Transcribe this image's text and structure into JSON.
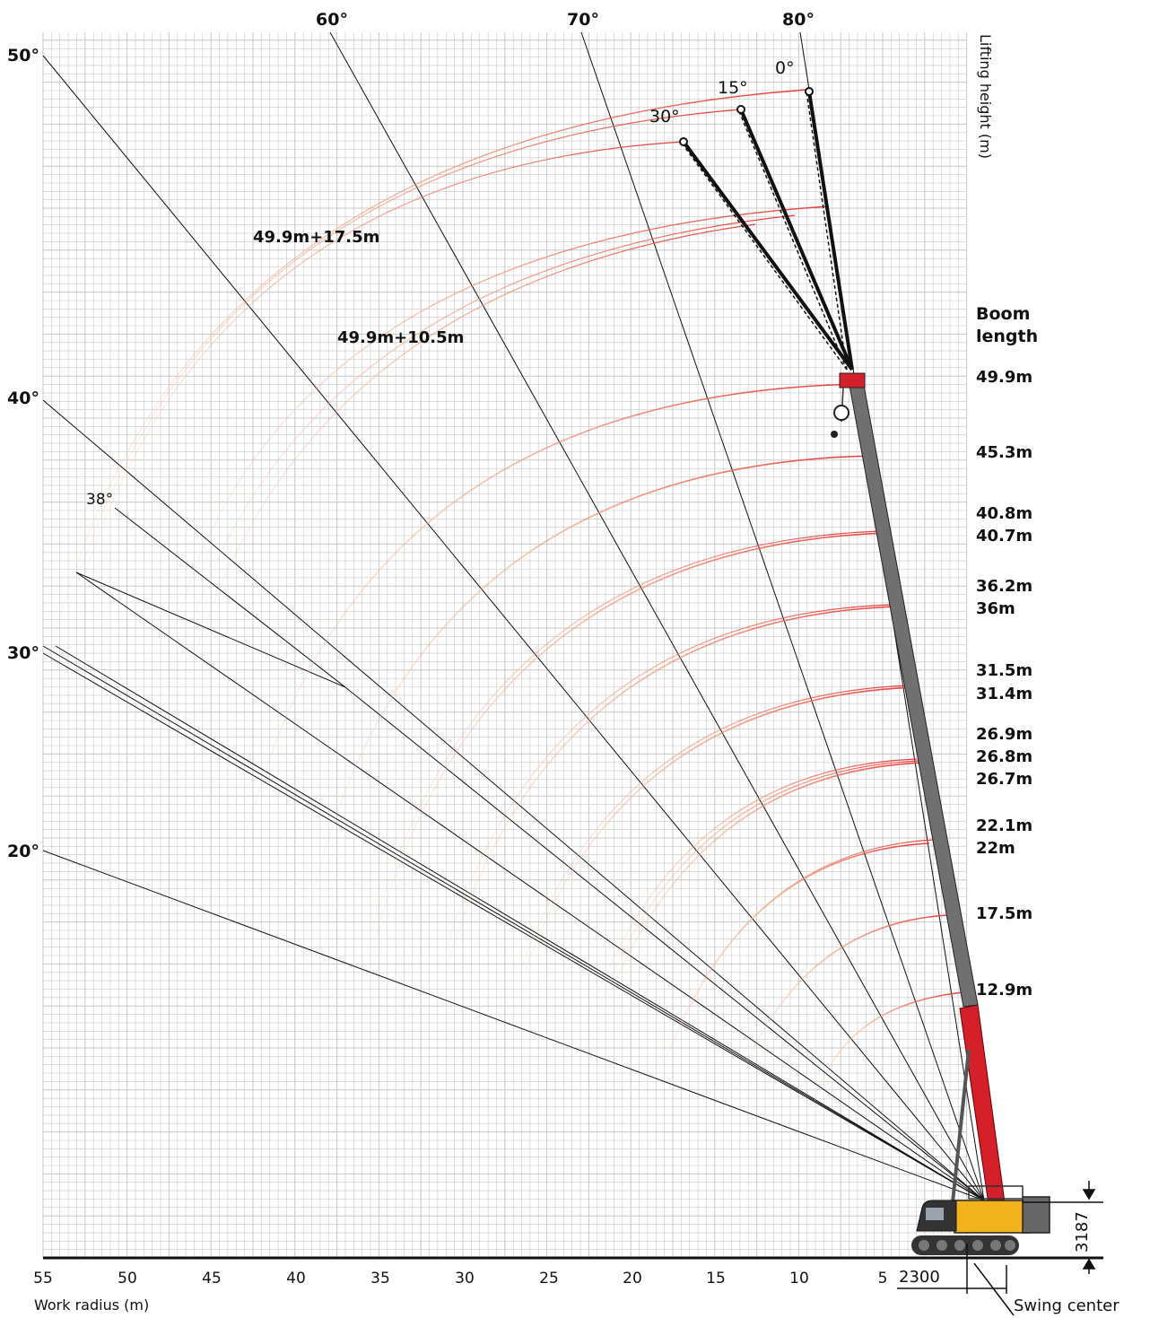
{
  "axes": {
    "x_label": "Work radius  (m)",
    "y_label": "Lifting height  (m)",
    "x_ticks": [
      55,
      50,
      45,
      40,
      35,
      30,
      25,
      20,
      15,
      10,
      5
    ],
    "grid": true
  },
  "boom_angle_labels": [
    "50°",
    "60°",
    "70°",
    "80°",
    "40°",
    "30°",
    "20°"
  ],
  "jib_offset_labels": [
    "0°",
    "15°",
    "30°",
    "38°"
  ],
  "jib_combo_labels": [
    "49.9m+17.5m",
    "49.9m+10.5m"
  ],
  "boom_length_title": [
    "Boom",
    "length"
  ],
  "boom_lengths": [
    "49.9m",
    "45.3m",
    "40.8m",
    "40.7m",
    "36.2m",
    "36m",
    "31.5m",
    "31.4m",
    "26.9m",
    "26.8m",
    "26.7m",
    "22.1m",
    "22m",
    "17.5m",
    "12.9m"
  ],
  "dimensions": {
    "height": "3187",
    "offset": "2300",
    "swing_center": "Swing center"
  },
  "colors": {
    "curve": "#e53935",
    "boom_upper": "#707070",
    "boom_base": "#d3202a",
    "carrier": "#f2b21b",
    "grid": "#c8c8c8"
  }
}
